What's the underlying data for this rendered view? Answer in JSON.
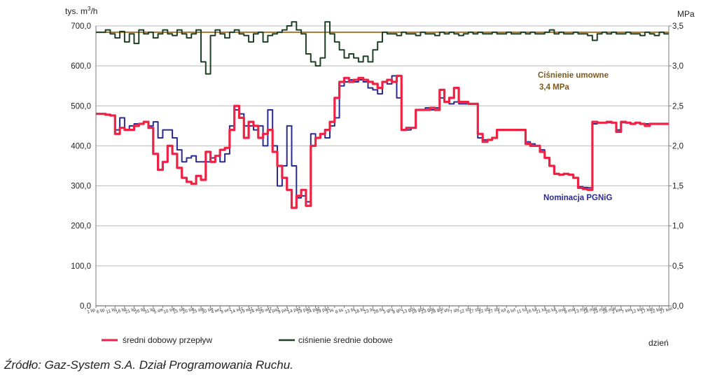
{
  "chart_data": {
    "type": "line",
    "left_axis": {
      "label_prefix": "tys. m",
      "label_sup": "3",
      "label_suffix": "/h",
      "ylim": [
        0,
        700
      ],
      "ticks": [
        "700,0",
        "600,0",
        "500,0",
        "400,0",
        "300,0",
        "200,0",
        "100,0",
        "0,0"
      ],
      "tick_values": [
        700,
        600,
        500,
        400,
        300,
        200,
        100,
        0
      ]
    },
    "right_axis": {
      "label": "MPa",
      "ylim": [
        0,
        3.5
      ],
      "ticks": [
        "3,5",
        "3,0",
        "2,5",
        "2,0",
        "1,5",
        "1,0",
        "0,5",
        "0,0"
      ],
      "tick_values": [
        3.5,
        3.0,
        2.5,
        2.0,
        1.5,
        1.0,
        0.5,
        0.0
      ]
    },
    "x_axis": {
      "label": "dzień",
      "range": [
        0,
        120
      ],
      "tick_labels": [
        "1 lip",
        "6 lip",
        "11 lip",
        "16 lip",
        "21 lip",
        "26 lip",
        "31 lip",
        "5 sie",
        "10 sie",
        "15 sie",
        "20 sie",
        "25 sie",
        "30 sie",
        "4 wrz",
        "9 wrz",
        "14 wrz",
        "19 wrz",
        "24 wrz",
        "29 wrz",
        "4 paź",
        "9 paź",
        "14 paź",
        "19 paź",
        "24 paź",
        "29 paź",
        "3 lis",
        "8 lis",
        "13 lis",
        "18 lis",
        "23 lis",
        "28 lis",
        "3 gru",
        "8 gru",
        "13 gru",
        "18 gru",
        "23 gru",
        "28 gru",
        "2 sty",
        "7 sty",
        "12 sty",
        "17 sty",
        "22 sty",
        "27 sty",
        "1 lut",
        "6 lut",
        "11 lut",
        "16 lut",
        "21 lut",
        "26 lut",
        "3 mar",
        "8 mar",
        "13 mar",
        "18 mar",
        "23 mar",
        "28 mar",
        "2 kwi",
        "7 kwi",
        "12 kwi",
        "17 kwi",
        "22 kwi",
        "27 kwi"
      ]
    },
    "grid": {
      "horizontal": true,
      "vertical": false
    },
    "series": [
      {
        "name": "średni dobowy przepływ",
        "axis": "left",
        "color": "#ee2244",
        "x": [
          0,
          2,
          3,
          4,
          5,
          6,
          7,
          8,
          9,
          10,
          11,
          12,
          13,
          14,
          15,
          16,
          17,
          18,
          19,
          20,
          21,
          22,
          23,
          24,
          25,
          26,
          27,
          28,
          29,
          30,
          31,
          32,
          33,
          34,
          35,
          36,
          37,
          38,
          39,
          40,
          41,
          42,
          43,
          44,
          45,
          46,
          47,
          48,
          49,
          50,
          51,
          52,
          53,
          54,
          55,
          56,
          57,
          58,
          59,
          60,
          61,
          62,
          63,
          64,
          65,
          66,
          67,
          68,
          69,
          70,
          71,
          72,
          73,
          74,
          75,
          76,
          77,
          78,
          79,
          80,
          81,
          82,
          83,
          84,
          85,
          86,
          87,
          88,
          89,
          90,
          91,
          92,
          93,
          94,
          95,
          96,
          97,
          98,
          99,
          100,
          101,
          102,
          103,
          104,
          105,
          106,
          107,
          108,
          109,
          110,
          111,
          112,
          113,
          114,
          115,
          116,
          117,
          118,
          119,
          120
        ],
        "values": [
          480,
          478,
          476,
          430,
          445,
          440,
          440,
          450,
          455,
          460,
          445,
          380,
          340,
          360,
          400,
          380,
          345,
          320,
          310,
          305,
          325,
          315,
          385,
          360,
          375,
          390,
          395,
          440,
          500,
          470,
          420,
          460,
          450,
          420,
          430,
          440,
          385,
          350,
          320,
          290,
          245,
          275,
          290,
          250,
          400,
          420,
          430,
          440,
          460,
          520,
          560,
          570,
          560,
          565,
          570,
          565,
          560,
          555,
          545,
          560,
          565,
          560,
          575,
          440,
          445,
          445,
          490,
          490,
          490,
          495,
          490,
          540,
          510,
          520,
          545,
          510,
          510,
          505,
          505,
          430,
          410,
          415,
          420,
          440,
          440,
          440,
          440,
          440,
          440,
          405,
          400,
          400,
          385,
          370,
          350,
          330,
          328,
          330,
          328,
          320,
          295,
          292,
          290,
          460,
          458,
          458,
          460,
          458,
          435,
          460,
          458,
          455,
          458,
          455,
          450,
          455,
          455,
          455,
          455,
          455
        ],
        "stroke_width": 3.2
      },
      {
        "name": "Nominacja PGNiG",
        "axis": "left",
        "color": "#2a2a90",
        "x": [
          0,
          2,
          3,
          4,
          5,
          6,
          7,
          8,
          9,
          10,
          11,
          12,
          13,
          14,
          15,
          16,
          17,
          18,
          19,
          20,
          21,
          22,
          23,
          24,
          25,
          26,
          27,
          28,
          29,
          30,
          31,
          32,
          33,
          34,
          35,
          36,
          37,
          38,
          39,
          40,
          41,
          42,
          43,
          44,
          45,
          46,
          47,
          48,
          49,
          50,
          51,
          52,
          53,
          54,
          55,
          56,
          57,
          58,
          59,
          60,
          61,
          62,
          63,
          64,
          65,
          66,
          67,
          68,
          69,
          70,
          71,
          72,
          73,
          74,
          75,
          76,
          77,
          78,
          79,
          80,
          81,
          82,
          83,
          84,
          85,
          86,
          87,
          88,
          89,
          90,
          91,
          92,
          93,
          94,
          95,
          96,
          97,
          98,
          99,
          100,
          101,
          102,
          103,
          104,
          105,
          106,
          107,
          108,
          109,
          110,
          111,
          112,
          113,
          114,
          115,
          116,
          117,
          118,
          119,
          120
        ],
        "values": [
          480,
          478,
          476,
          440,
          470,
          440,
          450,
          455,
          455,
          460,
          450,
          460,
          420,
          440,
          440,
          420,
          390,
          360,
          370,
          375,
          360,
          360,
          360,
          370,
          375,
          360,
          380,
          450,
          490,
          480,
          450,
          450,
          440,
          450,
          400,
          490,
          400,
          300,
          350,
          450,
          350,
          270,
          275,
          260,
          430,
          420,
          430,
          420,
          450,
          470,
          550,
          560,
          565,
          560,
          565,
          560,
          545,
          540,
          530,
          560,
          555,
          575,
          520,
          440,
          440,
          445,
          490,
          490,
          495,
          490,
          495,
          520,
          510,
          505,
          510,
          505,
          505,
          505,
          505,
          420,
          415,
          415,
          420,
          440,
          440,
          440,
          440,
          440,
          440,
          410,
          405,
          400,
          390,
          370,
          350,
          330,
          328,
          330,
          328,
          320,
          298,
          296,
          295,
          455,
          458,
          458,
          458,
          458,
          440,
          458,
          458,
          455,
          458,
          455,
          455,
          455,
          455,
          455,
          455,
          455
        ],
        "stroke_width": 2
      },
      {
        "name": "ciśnienie średnie dobowe",
        "axis": "right",
        "color": "#1f3f26",
        "x": [
          0,
          2,
          3,
          4,
          5,
          6,
          7,
          8,
          9,
          10,
          11,
          12,
          13,
          14,
          15,
          16,
          17,
          18,
          19,
          20,
          21,
          22,
          23,
          24,
          25,
          26,
          27,
          28,
          29,
          30,
          31,
          32,
          33,
          34,
          35,
          36,
          37,
          38,
          39,
          40,
          41,
          42,
          43,
          44,
          45,
          46,
          47,
          48,
          49,
          50,
          51,
          52,
          53,
          54,
          55,
          56,
          57,
          58,
          59,
          60,
          61,
          62,
          63,
          64,
          65,
          66,
          67,
          68,
          69,
          70,
          71,
          72,
          73,
          74,
          75,
          76,
          77,
          78,
          79,
          80,
          81,
          82,
          83,
          84,
          85,
          86,
          87,
          88,
          89,
          90,
          91,
          92,
          93,
          94,
          95,
          96,
          97,
          98,
          99,
          100,
          101,
          102,
          103,
          104,
          105,
          106,
          107,
          108,
          109,
          110,
          111,
          112,
          113,
          114,
          115,
          116,
          117,
          118,
          119,
          120
        ],
        "values": [
          3.42,
          3.45,
          3.4,
          3.35,
          3.43,
          3.3,
          3.4,
          3.28,
          3.45,
          3.4,
          3.42,
          3.35,
          3.4,
          3.45,
          3.4,
          3.38,
          3.45,
          3.4,
          3.35,
          3.4,
          3.45,
          3.05,
          2.9,
          3.38,
          3.45,
          3.4,
          3.35,
          3.42,
          3.45,
          3.4,
          3.38,
          3.3,
          3.4,
          3.42,
          3.3,
          3.38,
          3.4,
          3.42,
          3.45,
          3.5,
          3.55,
          3.45,
          3.4,
          3.15,
          3.05,
          3.0,
          3.1,
          3.55,
          3.4,
          3.3,
          3.2,
          3.1,
          3.15,
          3.1,
          3.05,
          3.12,
          3.05,
          3.2,
          3.3,
          3.42,
          3.4,
          3.4,
          3.38,
          3.42,
          3.4,
          3.4,
          3.38,
          3.42,
          3.4,
          3.4,
          3.38,
          3.42,
          3.4,
          3.42,
          3.4,
          3.38,
          3.4,
          3.42,
          3.4,
          3.42,
          3.4,
          3.4,
          3.42,
          3.4,
          3.4,
          3.42,
          3.4,
          3.4,
          3.42,
          3.4,
          3.42,
          3.4,
          3.4,
          3.42,
          3.45,
          3.4,
          3.42,
          3.4,
          3.4,
          3.42,
          3.4,
          3.4,
          3.38,
          3.32,
          3.4,
          3.42,
          3.4,
          3.42,
          3.4,
          3.4,
          3.42,
          3.4,
          3.4,
          3.38,
          3.42,
          3.4,
          3.38,
          3.42,
          3.4,
          3.4
        ],
        "stroke_width": 2
      },
      {
        "name": "Ciśnienie umowne",
        "axis": "right",
        "color": "#a07a30",
        "x": [
          0,
          120
        ],
        "values": [
          3.42,
          3.42
        ],
        "stroke_width": 2
      }
    ],
    "annotations": [
      {
        "text": "Ciśnienie umowne",
        "color": "#7a5a1e"
      },
      {
        "text": "3,4 MPa",
        "color": "#7a5a1e"
      },
      {
        "text": "Nominacja PGNiG",
        "color": "#2a2a90"
      }
    ],
    "legend": {
      "position": "bottom",
      "items": [
        {
          "label": "średni dobowy przepływ",
          "color": "#ee2244"
        },
        {
          "label": "ciśnienie średnie dobowe",
          "color": "#1f3f26"
        }
      ]
    }
  },
  "source": "Źródło: Gaz-System S.A. Dział Programowania Ruchu."
}
